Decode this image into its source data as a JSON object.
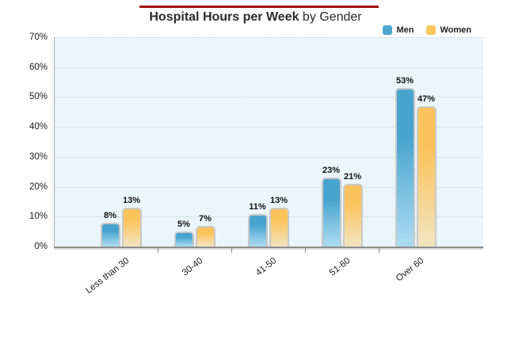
{
  "header": {
    "title_bold": "Hospital Hours per Week",
    "title_suffix": " by Gender",
    "accent_line_color": "#a80f0f"
  },
  "legend": {
    "position": "top-right",
    "items": [
      {
        "label": "Men",
        "color": "#4ba7d1"
      },
      {
        "label": "Women",
        "color": "#fbc75f"
      }
    ]
  },
  "chart_data": {
    "type": "bar",
    "title": "Hospital Hours per Week by Gender",
    "categories": [
      "Less than 30",
      "30-40",
      "41-50",
      "51-60",
      "Over 60"
    ],
    "series": [
      {
        "name": "Men",
        "values": [
          8,
          5,
          11,
          23,
          53
        ],
        "color_top": "#47a4cf",
        "color_bottom": "#a8daf0"
      },
      {
        "name": "Women",
        "values": [
          13,
          7,
          13,
          21,
          47
        ],
        "color_top": "#fbc35b",
        "color_bottom": "#f3e3bd"
      }
    ],
    "value_suffix": "%",
    "data_labels": [
      "8%",
      "13%",
      "5%",
      "7%",
      "11%",
      "13%",
      "23%",
      "21%",
      "53%",
      "47%"
    ],
    "xlabel": "",
    "ylabel": "",
    "ylim": [
      0,
      70
    ],
    "ytick_step": 10,
    "ytick_labels": [
      "0%",
      "10%",
      "20%",
      "30%",
      "40%",
      "50%",
      "60%",
      "70%"
    ],
    "grid": "horizontal-dotted",
    "plot_background": "#eaf5fc",
    "legend_position": "top-right"
  }
}
